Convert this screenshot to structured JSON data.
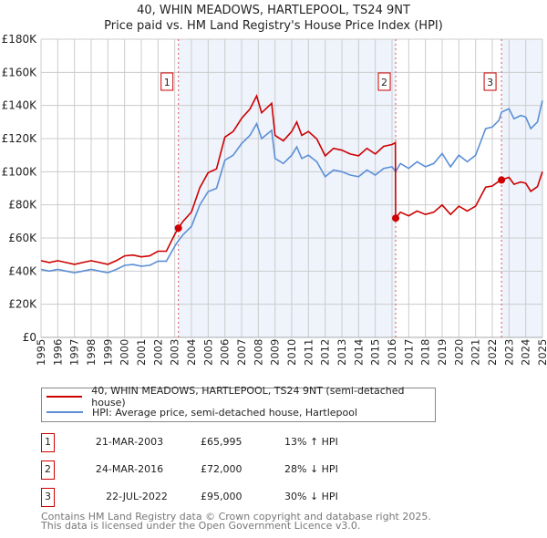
{
  "chart_data": {
    "type": "line",
    "title": "40, WHIN MEADOWS, HARTLEPOOL, TS24 9NT",
    "subtitle": "Price paid vs. HM Land Registry's House Price Index (HPI)",
    "xlabel": "",
    "ylabel": "",
    "xlim": [
      1995,
      2025
    ],
    "ylim": [
      0,
      180000
    ],
    "y_ticks": [
      0,
      20000,
      40000,
      60000,
      80000,
      100000,
      120000,
      140000,
      160000,
      180000
    ],
    "y_tick_labels": [
      "£0",
      "£20K",
      "£40K",
      "£60K",
      "£80K",
      "£100K",
      "£120K",
      "£140K",
      "£160K",
      "£180K"
    ],
    "x_ticks": [
      1995,
      1996,
      1997,
      1998,
      1999,
      2000,
      2001,
      2002,
      2003,
      2004,
      2005,
      2006,
      2007,
      2008,
      2009,
      2010,
      2011,
      2012,
      2013,
      2014,
      2015,
      2016,
      2017,
      2018,
      2019,
      2020,
      2021,
      2022,
      2023,
      2024,
      2025
    ],
    "grid": true,
    "legend_position": "below",
    "series": [
      {
        "name": "40, WHIN MEADOWS, HARTLEPOOL, TS24 9NT (semi-detached house)",
        "color": "#cc0000",
        "x": [
          1995,
          1995.5,
          1996,
          1996.5,
          1997,
          1997.5,
          1998,
          1998.5,
          1999,
          1999.5,
          2000,
          2000.5,
          2001,
          2001.5,
          2002,
          2002.5,
          2003,
          2003.22,
          2003.5,
          2004,
          2004.5,
          2005,
          2005.5,
          2006,
          2006.5,
          2007,
          2007.5,
          2007.9,
          2008.2,
          2008.8,
          2009,
          2009.5,
          2010,
          2010.3,
          2010.6,
          2011,
          2011.5,
          2012,
          2012.5,
          2013,
          2013.5,
          2014,
          2014.5,
          2015,
          2015.5,
          2016,
          2016.2,
          2016.22,
          2016.5,
          2017,
          2017.5,
          2018,
          2018.5,
          2019,
          2019.5,
          2020,
          2020.5,
          2021,
          2021.3,
          2021.6,
          2022,
          2022.4,
          2022.55,
          2023,
          2023.3,
          2023.7,
          2024,
          2024.3,
          2024.7,
          2025
        ],
        "values": [
          46300,
          45200,
          46300,
          45200,
          44100,
          45200,
          46300,
          45200,
          44100,
          46300,
          49200,
          49700,
          48600,
          49200,
          52000,
          52000,
          62200,
          65995,
          70100,
          75700,
          90400,
          99400,
          101700,
          120900,
          124300,
          132200,
          137900,
          145800,
          135600,
          141300,
          122000,
          118700,
          124300,
          130000,
          122000,
          124300,
          119800,
          109600,
          114100,
          113000,
          110700,
          109600,
          114100,
          110700,
          115300,
          116400,
          117500,
          72000,
          75600,
          73400,
          76300,
          74200,
          75600,
          79900,
          74200,
          79200,
          76300,
          79200,
          85000,
          90700,
          91400,
          94300,
          95000,
          96600,
          92400,
          93800,
          93100,
          88200,
          91000,
          100100
        ]
      },
      {
        "name": "HPI: Average price, semi-detached house, Hartlepool",
        "color": "#5b8fd6",
        "x": [
          1995,
          1995.5,
          1996,
          1996.5,
          1997,
          1997.5,
          1998,
          1998.5,
          1999,
          1999.5,
          2000,
          2000.5,
          2001,
          2001.5,
          2002,
          2002.5,
          2003,
          2003.22,
          2003.5,
          2004,
          2004.5,
          2005,
          2005.5,
          2006,
          2006.5,
          2007,
          2007.5,
          2007.9,
          2008.2,
          2008.8,
          2009,
          2009.5,
          2010,
          2010.3,
          2010.6,
          2011,
          2011.5,
          2012,
          2012.5,
          2013,
          2013.5,
          2014,
          2014.5,
          2015,
          2015.5,
          2016,
          2016.22,
          2016.5,
          2017,
          2017.5,
          2018,
          2018.5,
          2019,
          2019.5,
          2020,
          2020.5,
          2021,
          2021.3,
          2021.6,
          2022,
          2022.4,
          2022.55,
          2023,
          2023.3,
          2023.7,
          2024,
          2024.3,
          2024.7,
          2025
        ],
        "values": [
          41000,
          40000,
          41000,
          40000,
          39000,
          40000,
          41000,
          40000,
          39000,
          41000,
          43500,
          44000,
          43000,
          43500,
          46000,
          46000,
          55000,
          58400,
          62000,
          67000,
          80000,
          88000,
          90000,
          107000,
          110000,
          117000,
          122000,
          129000,
          120000,
          125000,
          108000,
          105000,
          110000,
          115000,
          108000,
          110000,
          106000,
          97000,
          101000,
          100000,
          98000,
          97000,
          101000,
          98000,
          102000,
          103000,
          100000,
          105000,
          102000,
          106000,
          103000,
          105000,
          111000,
          103000,
          110000,
          106000,
          110000,
          118000,
          126000,
          127000,
          131000,
          136000,
          138000,
          132000,
          134000,
          133000,
          126000,
          130000,
          143000
        ]
      }
    ],
    "sales": [
      {
        "id": "1",
        "x": 2003.22,
        "date": "21-MAR-2003",
        "price": 65995,
        "price_label": "£65,995",
        "hpi_label": "13% ↑ HPI"
      },
      {
        "id": "2",
        "x": 2016.22,
        "date": "24-MAR-2016",
        "price": 72000,
        "price_label": "£72,000",
        "hpi_label": "28% ↓ HPI"
      },
      {
        "id": "3",
        "x": 2022.55,
        "date": "22-JUL-2022",
        "price": 95000,
        "price_label": "£95,000",
        "hpi_label": "30% ↓ HPI"
      }
    ],
    "shaded_ranges": [
      [
        2003.22,
        2016.22
      ],
      [
        2022.55,
        2025
      ]
    ]
  },
  "footer": {
    "line1": "Contains HM Land Registry data © Crown copyright and database right 2025.",
    "line2": "This data is licensed under the Open Government Licence v3.0."
  }
}
